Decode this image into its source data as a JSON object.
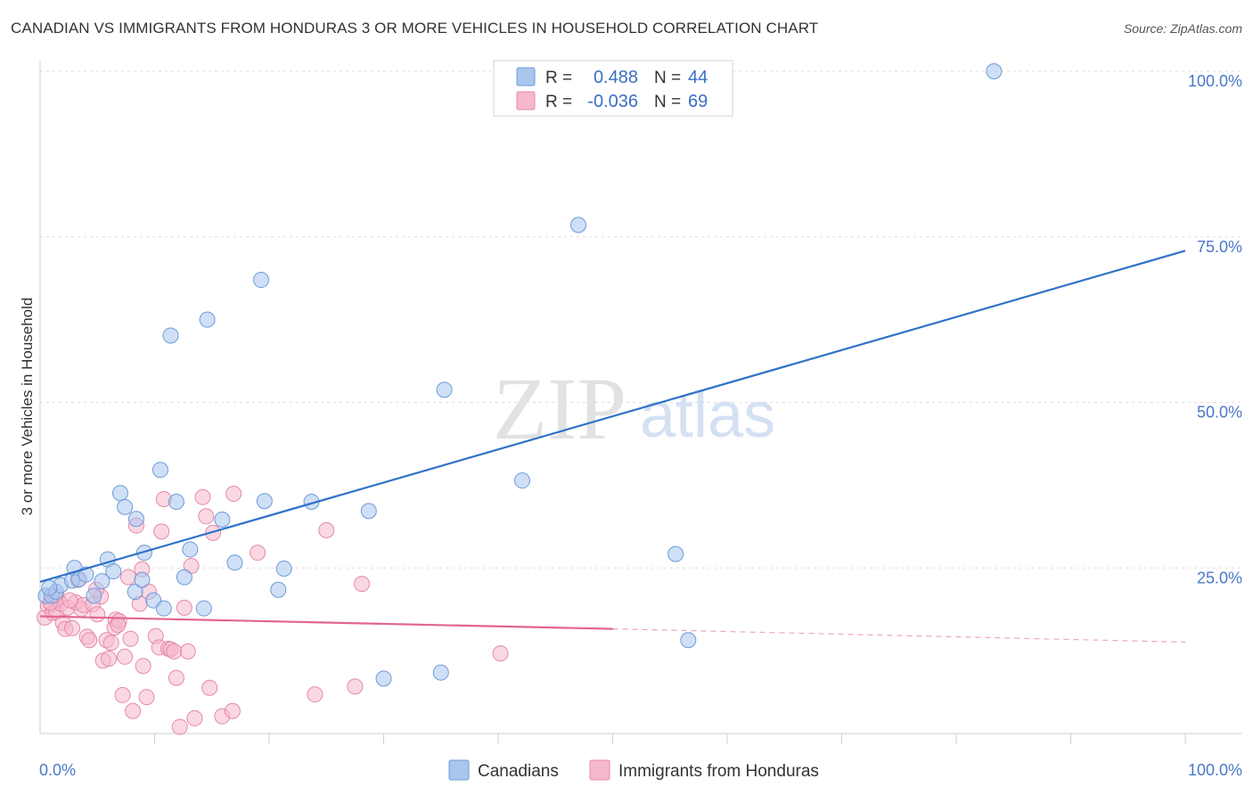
{
  "header": {
    "title": "CANADIAN VS IMMIGRANTS FROM HONDURAS 3 OR MORE VEHICLES IN HOUSEHOLD CORRELATION CHART",
    "source": "Source: ZipAtlas.com"
  },
  "watermark": {
    "zip": "ZIP",
    "atlas": "atlas"
  },
  "colors": {
    "canadians_fill": "#a8c6ee",
    "canadians_stroke": "#6f9ad8",
    "canadians_line": "#2f72c9",
    "honduras_fill": "#f6b8cc",
    "honduras_stroke": "#e58aa8",
    "honduras_line": "#e2668f",
    "tick_label": "#4a78c8",
    "grid": "#dddddd"
  },
  "stats": {
    "rows": [
      {
        "r_label": "R =",
        "r_value": "0.488",
        "n_label": "N =",
        "n_value": "44"
      },
      {
        "r_label": "R =",
        "r_value": "-0.036",
        "n_label": "N =",
        "n_value": "69"
      }
    ]
  },
  "legend": {
    "items": [
      "Canadians",
      "Immigrants from Honduras"
    ]
  },
  "chart_data": {
    "type": "scatter",
    "title": "CANADIAN VS IMMIGRANTS FROM HONDURAS 3 OR MORE VEHICLES IN HOUSEHOLD CORRELATION CHART",
    "xlabel": "",
    "ylabel": "3 or more Vehicles in Household",
    "xlim": [
      0,
      100
    ],
    "ylim": [
      0,
      100
    ],
    "x_tick_labels": [
      {
        "value": 0,
        "label": "0.0%"
      },
      {
        "value": 100,
        "label": "100.0%"
      }
    ],
    "y_tick_labels": [
      {
        "value": 25,
        "label": "25.0%"
      },
      {
        "value": 50,
        "label": "50.0%"
      },
      {
        "value": 75,
        "label": "75.0%"
      },
      {
        "value": 100,
        "label": "100.0%"
      }
    ],
    "gridlines_y": [
      25,
      50,
      75,
      100
    ],
    "series": [
      {
        "name": "Canadians",
        "trend": {
          "x": [
            0,
            100
          ],
          "y": [
            22.9,
            72.9
          ]
        },
        "points": [
          [
            0.5,
            20.8
          ],
          [
            1.0,
            20.8
          ],
          [
            1.4,
            21.4
          ],
          [
            1.8,
            22.4
          ],
          [
            2.8,
            23.1
          ],
          [
            3.0,
            25.0
          ],
          [
            3.4,
            23.3
          ],
          [
            4.0,
            24.0
          ],
          [
            4.7,
            20.8
          ],
          [
            5.4,
            23.0
          ],
          [
            5.9,
            26.3
          ],
          [
            6.4,
            24.5
          ],
          [
            7.0,
            36.3
          ],
          [
            7.4,
            34.2
          ],
          [
            8.3,
            21.4
          ],
          [
            8.4,
            32.4
          ],
          [
            8.9,
            23.2
          ],
          [
            9.1,
            27.3
          ],
          [
            9.9,
            20.1
          ],
          [
            10.5,
            39.8
          ],
          [
            10.8,
            18.9
          ],
          [
            11.4,
            60.1
          ],
          [
            11.9,
            35.0
          ],
          [
            12.6,
            23.6
          ],
          [
            13.1,
            27.8
          ],
          [
            14.3,
            18.9
          ],
          [
            14.6,
            62.5
          ],
          [
            15.9,
            32.3
          ],
          [
            17.0,
            25.8
          ],
          [
            19.3,
            68.5
          ],
          [
            19.6,
            35.1
          ],
          [
            20.8,
            21.7
          ],
          [
            21.3,
            24.9
          ],
          [
            23.7,
            35.0
          ],
          [
            28.7,
            33.6
          ],
          [
            30.0,
            8.3
          ],
          [
            35.0,
            9.2
          ],
          [
            35.3,
            51.9
          ],
          [
            42.1,
            38.2
          ],
          [
            47.0,
            76.8
          ],
          [
            55.5,
            27.1
          ],
          [
            56.6,
            14.1
          ],
          [
            83.3,
            100.0
          ],
          [
            0.8,
            22.0
          ]
        ]
      },
      {
        "name": "Immigrants from Honduras",
        "trend": {
          "x": [
            0,
            50,
            100
          ],
          "y": [
            17.7,
            15.8,
            13.8
          ],
          "solid_until_x": 50
        },
        "points": [
          [
            0.4,
            17.5
          ],
          [
            0.7,
            19.3
          ],
          [
            1.0,
            19.5
          ],
          [
            1.1,
            18.2
          ],
          [
            1.4,
            18.4
          ],
          [
            1.6,
            20.2
          ],
          [
            1.8,
            19.6
          ],
          [
            2.0,
            16.7
          ],
          [
            2.2,
            15.8
          ],
          [
            2.4,
            19.0
          ],
          [
            2.8,
            15.9
          ],
          [
            3.1,
            19.8
          ],
          [
            3.3,
            23.2
          ],
          [
            3.6,
            18.8
          ],
          [
            3.8,
            19.4
          ],
          [
            4.1,
            14.6
          ],
          [
            4.3,
            14.1
          ],
          [
            4.6,
            19.5
          ],
          [
            5.0,
            18.0
          ],
          [
            5.3,
            20.7
          ],
          [
            5.5,
            11.0
          ],
          [
            5.8,
            14.1
          ],
          [
            6.0,
            11.3
          ],
          [
            6.2,
            13.7
          ],
          [
            6.5,
            16.0
          ],
          [
            6.6,
            17.2
          ],
          [
            6.9,
            17.0
          ],
          [
            7.2,
            5.8
          ],
          [
            7.4,
            11.6
          ],
          [
            7.7,
            23.6
          ],
          [
            7.9,
            14.3
          ],
          [
            8.1,
            3.4
          ],
          [
            8.4,
            31.4
          ],
          [
            8.7,
            19.6
          ],
          [
            8.9,
            24.8
          ],
          [
            9.0,
            10.2
          ],
          [
            9.3,
            5.5
          ],
          [
            9.5,
            21.4
          ],
          [
            10.1,
            14.7
          ],
          [
            10.4,
            13.0
          ],
          [
            10.6,
            30.5
          ],
          [
            10.8,
            35.4
          ],
          [
            11.2,
            12.8
          ],
          [
            11.4,
            12.7
          ],
          [
            11.7,
            12.4
          ],
          [
            11.9,
            8.4
          ],
          [
            12.2,
            1.0
          ],
          [
            12.6,
            19.0
          ],
          [
            13.2,
            25.3
          ],
          [
            13.5,
            2.3
          ],
          [
            14.2,
            35.7
          ],
          [
            14.5,
            32.8
          ],
          [
            14.8,
            6.9
          ],
          [
            15.1,
            30.3
          ],
          [
            15.9,
            2.6
          ],
          [
            16.8,
            3.4
          ],
          [
            16.9,
            36.2
          ],
          [
            19.0,
            27.3
          ],
          [
            24.0,
            5.9
          ],
          [
            25.0,
            30.7
          ],
          [
            27.5,
            7.1
          ],
          [
            28.1,
            22.6
          ],
          [
            40.2,
            12.1
          ],
          [
            0.9,
            19.8
          ],
          [
            1.3,
            20.9
          ],
          [
            2.6,
            20.1
          ],
          [
            4.9,
            21.7
          ],
          [
            6.8,
            16.4
          ],
          [
            12.9,
            12.4
          ]
        ]
      }
    ]
  }
}
